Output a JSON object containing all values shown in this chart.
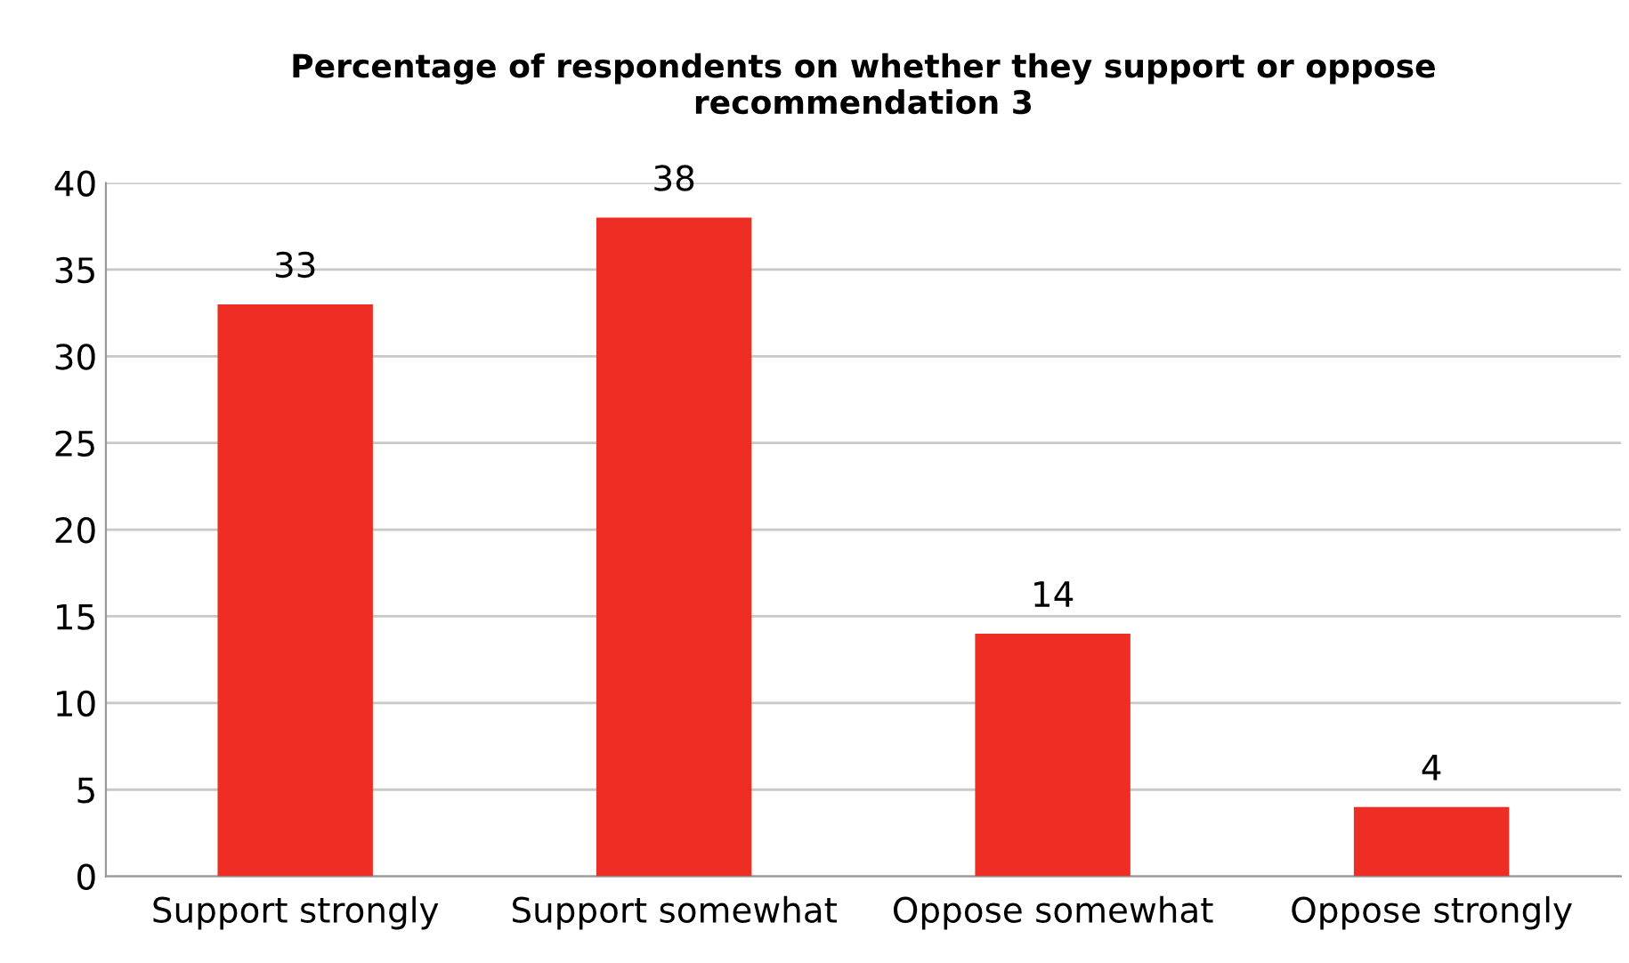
{
  "chart_data": {
    "type": "bar",
    "title": "Percentage of respondents on whether they support or oppose\nrecommendation 3",
    "categories": [
      "Support strongly",
      "Support somewhat",
      "Oppose somewhat",
      "Oppose strongly"
    ],
    "values": [
      33,
      38,
      14,
      4
    ],
    "color": "#ee2e24",
    "ylim": [
      0,
      40
    ],
    "yticks": [
      0,
      5,
      10,
      15,
      20,
      25,
      30,
      35,
      40
    ],
    "grid": "y",
    "data_labels": true
  }
}
